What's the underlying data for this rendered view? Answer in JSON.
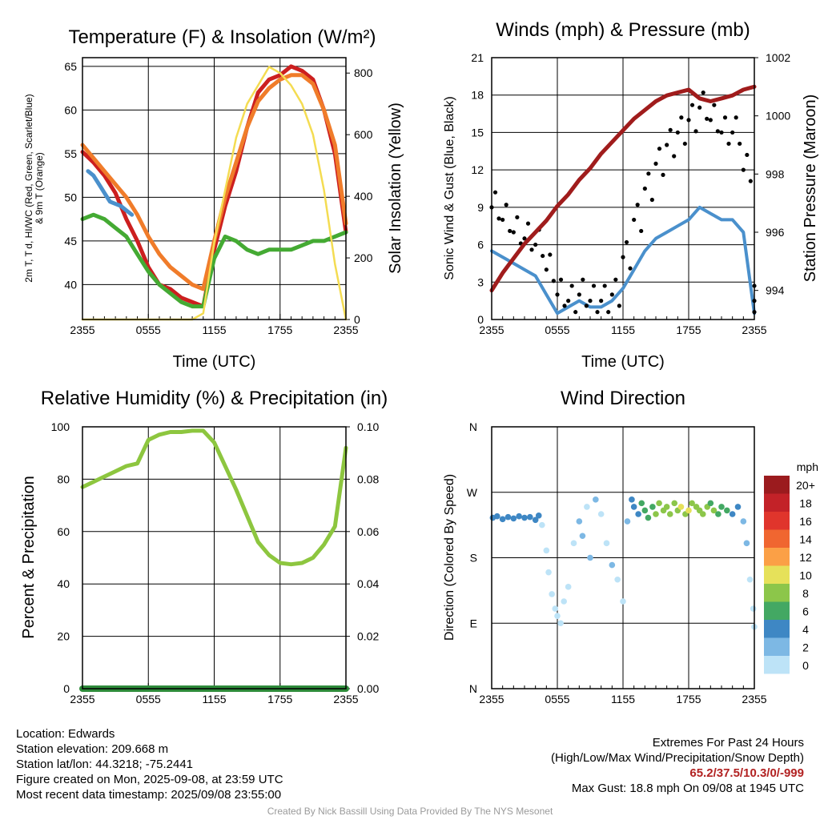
{
  "chart_data": [
    {
      "type": "line",
      "title": "Temperature (F) & Insolation (W/m²)",
      "xlabel": "Time (UTC)",
      "ylabel": "2m T, Td, HI/WC (Red, Green, Scarlet/Blue) & 9m T (Orange)",
      "ylabel_lines": [
        "2m T, T d, HI/WC (Red, Green, Scarlet/Blue)",
        "& 9m T (Orange)"
      ],
      "y2label": "Solar Insolation (Yellow)",
      "x_ticks": [
        "2355",
        "0555",
        "1155",
        "1755",
        "2355"
      ],
      "ylim": [
        36,
        66
      ],
      "y_ticks": [
        40,
        45,
        50,
        55,
        60,
        65
      ],
      "y2lim": [
        0,
        850
      ],
      "y2_ticks": [
        0,
        200,
        400,
        600,
        800
      ],
      "grid": true,
      "x_hours": [
        0,
        1,
        2,
        3,
        4,
        5,
        6,
        7,
        8,
        9,
        10,
        11,
        12,
        13,
        14,
        15,
        16,
        17,
        18,
        19,
        20,
        21,
        22,
        23,
        24
      ],
      "series": [
        {
          "name": "2m T",
          "color": "#cc1f1f",
          "values": [
            55.2,
            54,
            52.5,
            50.5,
            47.5,
            45,
            42,
            40,
            39.5,
            38.5,
            38,
            37.5,
            44,
            49,
            53,
            58,
            62,
            63.5,
            64,
            65,
            64.5,
            63.5,
            60,
            55,
            46
          ]
        },
        {
          "name": "9m T",
          "color": "#f07c2a",
          "values": [
            56,
            54.5,
            53,
            51.5,
            50,
            48,
            45.5,
            43.5,
            42,
            41,
            40,
            39.5,
            45,
            50,
            54,
            58,
            61,
            62.5,
            63.5,
            64,
            64,
            63,
            60,
            56,
            47
          ]
        },
        {
          "name": "Td",
          "color": "#44aa33",
          "values": [
            47.5,
            48,
            47.5,
            46.5,
            45.5,
            43.5,
            41.5,
            40,
            39,
            38,
            37.5,
            37.5,
            43,
            45.5,
            45,
            44,
            43.5,
            44,
            44,
            44,
            44.5,
            45,
            45,
            45.5,
            46
          ]
        },
        {
          "name": "HI/WC",
          "color": "#4a90cc",
          "hours": [
            0.5,
            1,
            1.5,
            2,
            2.5,
            3.5,
            4,
            4.5
          ],
          "values": [
            53,
            52.5,
            51.5,
            50.5,
            49.5,
            49,
            48.5,
            48
          ]
        },
        {
          "name": "Solar Insolation",
          "axis": "right",
          "color": "#f4dc52",
          "values": [
            0,
            0,
            0,
            0,
            0,
            0,
            0,
            0,
            0,
            0,
            0,
            20,
            250,
            420,
            590,
            700,
            760,
            820,
            800,
            760,
            700,
            600,
            420,
            180,
            0
          ]
        }
      ]
    },
    {
      "type": "line",
      "title": "Winds (mph) & Pressure (mb)",
      "xlabel": "Time (UTC)",
      "ylabel": "Sonic Wind & Gust (Blue, Black)",
      "y2label": "Station Pressure (Maroon)",
      "x_ticks": [
        "2355",
        "0555",
        "1155",
        "1755",
        "2355"
      ],
      "ylim": [
        0,
        21
      ],
      "y_ticks": [
        0,
        3,
        6,
        9,
        12,
        15,
        18,
        21
      ],
      "y2lim": [
        993,
        1002
      ],
      "y2_ticks": [
        994,
        996,
        998,
        1000,
        1002
      ],
      "grid": true,
      "x_hours": [
        0,
        1,
        2,
        3,
        4,
        5,
        6,
        7,
        8,
        9,
        10,
        11,
        12,
        13,
        14,
        15,
        16,
        17,
        18,
        19,
        20,
        21,
        22,
        23,
        24
      ],
      "series": [
        {
          "name": "Sonic Wind",
          "color": "#4a90cc",
          "values": [
            5.5,
            5,
            4.5,
            4,
            3.5,
            2,
            0.5,
            1,
            1.5,
            1,
            1,
            1.5,
            2.5,
            4,
            5.5,
            6.5,
            7,
            7.5,
            8,
            9,
            8.5,
            8,
            8,
            7,
            0.5
          ]
        },
        {
          "name": "Gust",
          "color": "#000000",
          "values": [
            9,
            8,
            7,
            6.5,
            6,
            4,
            2,
            1.5,
            2,
            1.5,
            1.5,
            2,
            5,
            8,
            10.5,
            12.5,
            14,
            15,
            16,
            17,
            16,
            15,
            15,
            12,
            1.5
          ]
        },
        {
          "name": "Station Pressure",
          "axis": "right",
          "color": "#a01c1c",
          "values": [
            994,
            994.6,
            995.1,
            995.6,
            996,
            996.4,
            996.9,
            997.3,
            997.8,
            998.2,
            998.7,
            999.1,
            999.5,
            999.9,
            1000.2,
            1000.5,
            1000.7,
            1000.8,
            1000.9,
            1000.6,
            1000.5,
            1000.6,
            1000.7,
            1000.9,
            1001
          ]
        }
      ]
    },
    {
      "type": "line",
      "title": "Relative Humidity (%) & Precipitation (in)",
      "xlabel": "",
      "ylabel": "Percent & Precipitation",
      "x_ticks": [
        "2355",
        "0555",
        "1155",
        "1755",
        "2355"
      ],
      "ylim": [
        0,
        100
      ],
      "y_ticks": [
        0,
        20,
        40,
        60,
        80,
        100
      ],
      "y2lim": [
        0,
        0.1
      ],
      "y2_ticks": [
        "0.00",
        "0.02",
        "0.04",
        "0.06",
        "0.08",
        "0.10"
      ],
      "grid": true,
      "x_hours": [
        0,
        1,
        2,
        3,
        4,
        5,
        6,
        7,
        8,
        9,
        10,
        11,
        12,
        13,
        14,
        15,
        16,
        17,
        18,
        19,
        20,
        21,
        22,
        23,
        24
      ],
      "series": [
        {
          "name": "Relative Humidity",
          "color": "#8dc63f",
          "values": [
            77,
            79,
            81,
            83,
            85,
            86,
            95,
            97,
            98,
            98,
            98.5,
            98.5,
            94,
            85,
            76,
            66,
            56,
            51,
            48,
            47.5,
            48,
            50,
            55,
            62,
            92
          ]
        },
        {
          "name": "Precipitation",
          "axis": "right",
          "color": "#2e8b3a",
          "values": [
            0,
            0,
            0,
            0,
            0,
            0,
            0,
            0,
            0,
            0,
            0,
            0,
            0,
            0,
            0,
            0,
            0,
            0,
            0,
            0,
            0,
            0,
            0,
            0,
            0
          ]
        }
      ]
    },
    {
      "type": "scatter",
      "title": "Wind Direction",
      "xlabel": "",
      "ylabel": "Direction (Colored By Speed)",
      "x_ticks": [
        "2355",
        "0555",
        "1155",
        "1755",
        "2355"
      ],
      "y_ticks": [
        "N",
        "E",
        "S",
        "W",
        "N"
      ],
      "ylim": [
        0,
        360
      ],
      "grid": true,
      "colorbar": {
        "unit": "mph",
        "labels": [
          "20+",
          "18",
          "16",
          "14",
          "12",
          "10",
          "8",
          "6",
          "4",
          "2",
          "0"
        ],
        "colors": [
          "#9b1b1e",
          "#c32228",
          "#e0352c",
          "#f06630",
          "#fba046",
          "#e6e15a",
          "#8cc64a",
          "#43a863",
          "#3e87c4",
          "#7db8e4",
          "#bde3f7"
        ]
      },
      "points": [
        [
          0.1,
          235,
          4
        ],
        [
          0.5,
          237,
          4
        ],
        [
          1,
          233,
          4
        ],
        [
          1.5,
          236,
          4
        ],
        [
          2,
          234,
          4
        ],
        [
          2.5,
          237,
          4
        ],
        [
          3,
          235,
          4
        ],
        [
          3.5,
          236,
          4
        ],
        [
          4,
          232,
          4
        ],
        [
          4.3,
          238,
          4
        ],
        [
          4.6,
          225,
          1
        ],
        [
          5,
          190,
          1
        ],
        [
          5.2,
          160,
          1
        ],
        [
          5.5,
          130,
          1
        ],
        [
          5.8,
          110,
          1
        ],
        [
          6,
          100,
          0
        ],
        [
          6.3,
          90,
          0
        ],
        [
          6.6,
          120,
          1
        ],
        [
          7,
          140,
          1
        ],
        [
          7.5,
          200,
          1
        ],
        [
          8,
          230,
          2
        ],
        [
          8.3,
          210,
          2
        ],
        [
          8.7,
          250,
          1
        ],
        [
          9,
          180,
          2
        ],
        [
          9.5,
          260,
          2
        ],
        [
          10,
          240,
          1
        ],
        [
          10.5,
          200,
          1
        ],
        [
          11,
          170,
          2
        ],
        [
          11.5,
          150,
          1
        ],
        [
          12,
          120,
          1
        ],
        [
          12.4,
          230,
          3
        ],
        [
          12.8,
          260,
          4
        ],
        [
          13,
          250,
          4
        ],
        [
          13.4,
          240,
          5
        ],
        [
          13.7,
          255,
          6
        ],
        [
          14,
          245,
          6
        ],
        [
          14.3,
          235,
          7
        ],
        [
          14.7,
          250,
          7
        ],
        [
          15,
          240,
          8
        ],
        [
          15.3,
          255,
          8
        ],
        [
          15.7,
          245,
          8
        ],
        [
          16,
          250,
          9
        ],
        [
          16.3,
          240,
          9
        ],
        [
          16.7,
          255,
          8
        ],
        [
          17,
          245,
          9
        ],
        [
          17.3,
          250,
          10
        ],
        [
          17.7,
          240,
          9
        ],
        [
          18,
          245,
          10
        ],
        [
          18.3,
          255,
          9
        ],
        [
          18.7,
          250,
          8
        ],
        [
          19,
          245,
          9
        ],
        [
          19.3,
          240,
          8
        ],
        [
          19.7,
          250,
          8
        ],
        [
          20,
          255,
          7
        ],
        [
          20.3,
          245,
          8
        ],
        [
          20.7,
          240,
          7
        ],
        [
          21,
          250,
          6
        ],
        [
          21.5,
          245,
          6
        ],
        [
          22,
          240,
          5
        ],
        [
          22.5,
          250,
          5
        ],
        [
          23,
          230,
          3
        ],
        [
          23.3,
          200,
          2
        ],
        [
          23.6,
          150,
          1
        ],
        [
          23.9,
          110,
          1
        ],
        [
          24,
          85,
          1
        ]
      ]
    }
  ],
  "info": {
    "location": "Location: Edwards",
    "elevation": "Station elevation: 209.668 m",
    "latlon": "Station lat/lon: 44.3218; -75.2441",
    "created": "Figure created on Mon, 2025-09-08, at 23:59 UTC",
    "recent": "Most recent data timestamp: 2025/09/08 23:55:00"
  },
  "extremes": {
    "heading": "Extremes For Past 24 Hours",
    "legend": "(High/Low/Max Wind/Precipitation/Snow Depth)",
    "values": "65.2/37.5/10.3/0/-999",
    "gust": "Max Gust: 18.8 mph On 09/08 at 1945 UTC"
  },
  "credit": "Created By Nick Bassill Using Data Provided By The NYS Mesonet"
}
